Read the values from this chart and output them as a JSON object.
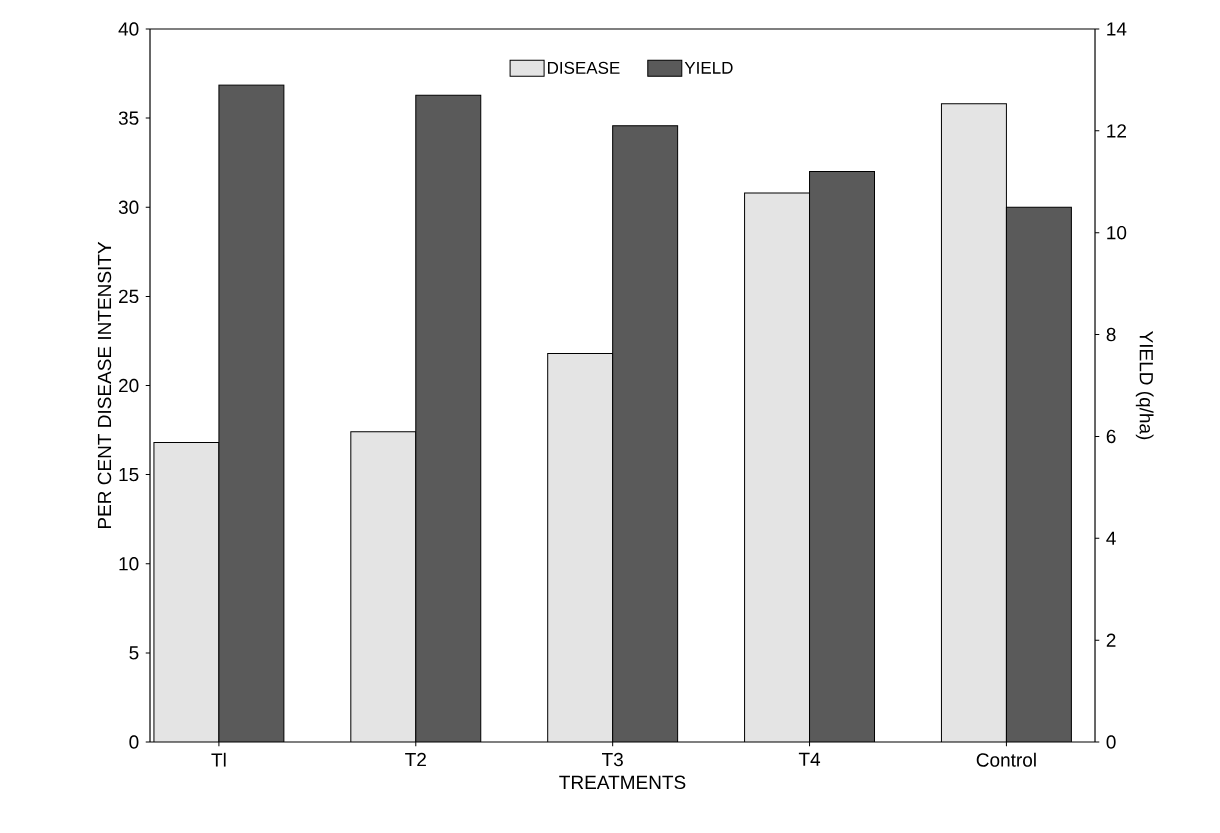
{
  "chart_data": {
    "type": "bar",
    "xlabel": "TREATMENTS",
    "ylabel": "PER CENT DISEASE INTENSITY",
    "y2label": "YIELD (q/ha)",
    "categories": [
      "Tl",
      "T2",
      "T3",
      "T4",
      "Control"
    ],
    "series": [
      {
        "name": "DISEASE",
        "color": "#e4e4e4",
        "values": [
          16.8,
          17.4,
          21.8,
          30.8,
          35.8
        ]
      },
      {
        "name": "YIELD",
        "color": "#5a5a5a",
        "axis": "y2",
        "values": [
          12.9,
          12.7,
          12.1,
          11.2,
          10.5
        ]
      }
    ],
    "ylim": [
      0,
      40
    ],
    "yticks": [
      0,
      5,
      10,
      15,
      20,
      25,
      30,
      35,
      40
    ],
    "y2lim": [
      0,
      14
    ],
    "y2ticks": [
      0,
      2,
      4,
      6,
      8,
      10,
      12,
      14
    ],
    "legend": "top",
    "grid": false
  }
}
